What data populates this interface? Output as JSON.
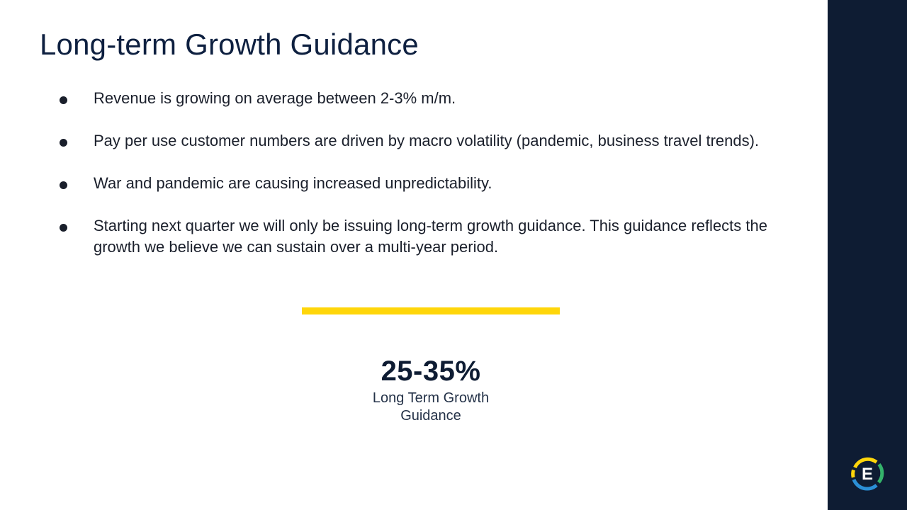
{
  "slide": {
    "title": "Long-term Growth Guidance",
    "bullets": [
      "Revenue is growing on average between 2-3% m/m.",
      "Pay per use customer numbers are driven by macro volatility (pandemic, business travel trends).",
      "War and pandemic are causing increased unpredictability.",
      "Starting next quarter we will only be issuing long-term growth guidance. This guidance reflects the growth we believe we can sustain over a multi-year period."
    ],
    "metric": {
      "value": "25-35%",
      "label": "Long Term Growth Guidance"
    },
    "logo": {
      "letter": "E",
      "icon": "company-e-logo-icon"
    }
  },
  "colors": {
    "sidebar": "#0e1c33",
    "accent_bar": "#ffd60a",
    "title": "#0e2040",
    "logo_yellow": "#ffd60a",
    "logo_blue": "#2b8fd6",
    "logo_green": "#34b36b"
  }
}
